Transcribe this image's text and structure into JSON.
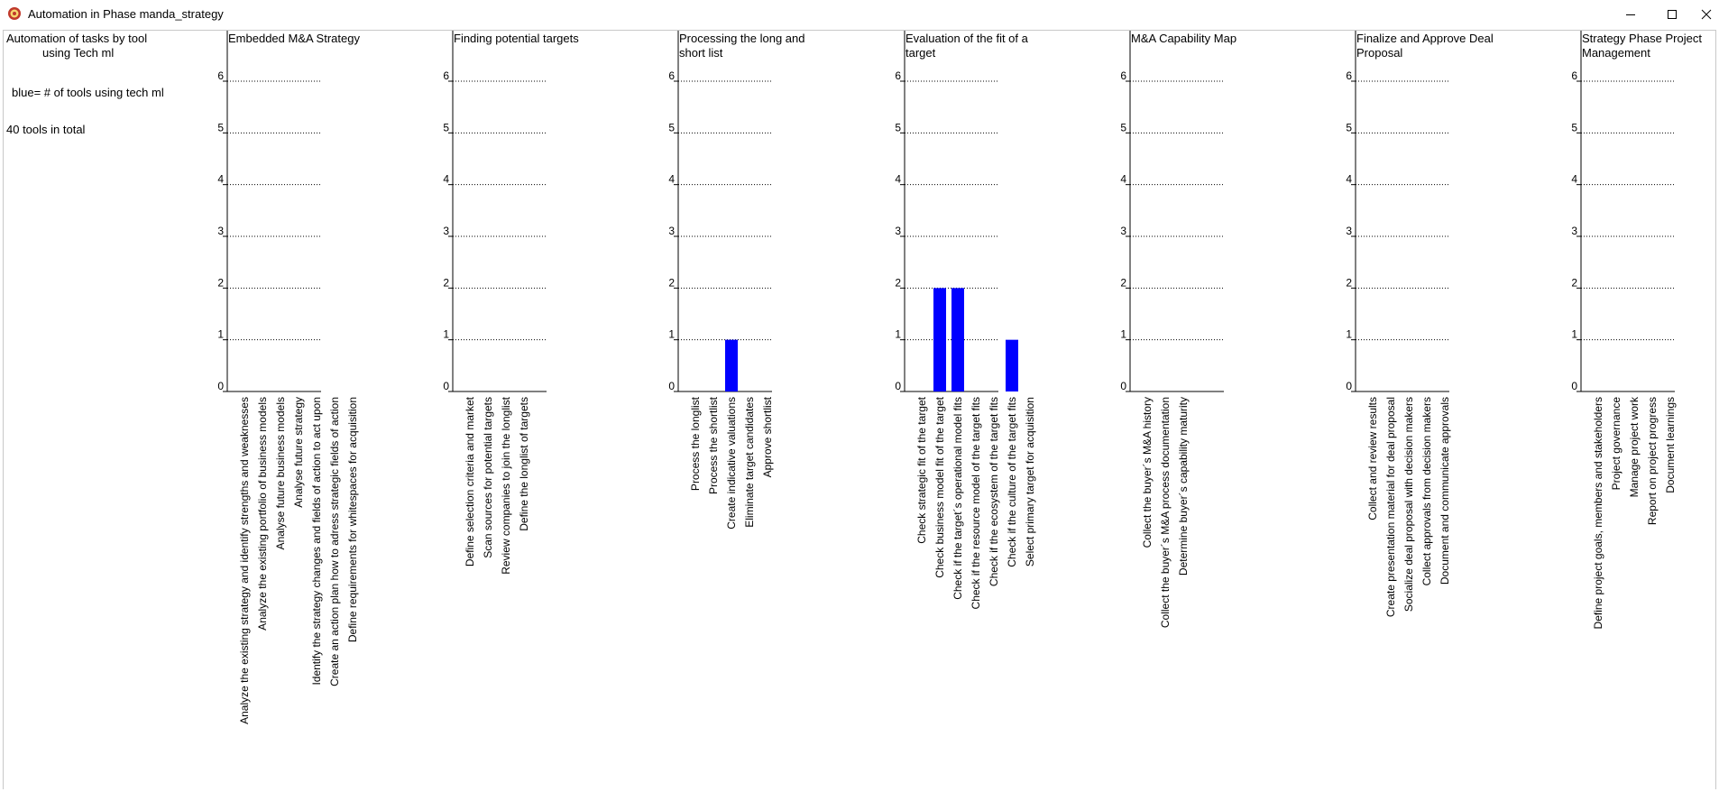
{
  "window": {
    "title": "Automation in Phase manda_strategy",
    "minimize_icon": "minimize-icon",
    "maximize_icon": "maximize-icon",
    "close_icon": "close-icon"
  },
  "info": {
    "heading_line1": "Automation of tasks by tool",
    "heading_line2": "using Tech ml",
    "legend_text": "blue= # of tools using tech ml",
    "total_text": "40 tools in total"
  },
  "colors": {
    "bar": "#0000ff",
    "axis": "#000000",
    "grid": "#000000"
  },
  "chart_data": [
    {
      "type": "bar",
      "title": "Embedded M&A Strategy",
      "ylim": [
        0,
        6
      ],
      "yticks": [
        0,
        1,
        2,
        3,
        4,
        5,
        6
      ],
      "grid": "dotted horizontal",
      "categories": [
        "Analyze the existing strategy and identify strengths and weaknesses",
        "Analyze the existing portfolio of business models",
        "Analyse future business models",
        "Analyse future strategy",
        "Identify the strategy changes and fields of action to act upon",
        "Create an action plan how to adress strategic fields of action",
        "Define requirements for whitespaces for acquisition"
      ],
      "values": [
        0,
        0,
        0,
        0,
        0,
        0,
        0
      ]
    },
    {
      "type": "bar",
      "title": "Finding potential targets",
      "ylim": [
        0,
        6
      ],
      "yticks": [
        0,
        1,
        2,
        3,
        4,
        5,
        6
      ],
      "grid": "dotted horizontal",
      "categories": [
        "Define selection criteria and market",
        "Scan sources for potential targets",
        "Review companies to join the longlist",
        "Define the longlist of targets"
      ],
      "values": [
        0,
        0,
        0,
        0
      ]
    },
    {
      "type": "bar",
      "title": "Processing the long and short list",
      "ylim": [
        0,
        6
      ],
      "yticks": [
        0,
        1,
        2,
        3,
        4,
        5,
        6
      ],
      "grid": "dotted horizontal",
      "categories": [
        "Process the longlist",
        "Process the shortlist",
        "Create indicative valuations",
        "Eliminate target candidates",
        "Approve shortlist"
      ],
      "values": [
        0,
        0,
        1,
        0,
        0
      ]
    },
    {
      "type": "bar",
      "title": "Evaluation of the fit of a target",
      "ylim": [
        0,
        6
      ],
      "yticks": [
        0,
        1,
        2,
        3,
        4,
        5,
        6
      ],
      "grid": "dotted horizontal",
      "categories": [
        "Check strategic fit of the target",
        "Check business model fit of the target",
        "Check if the target´s operational model fits",
        "Check if the resource model of the target fits",
        "Check if the ecosystem of the target fits",
        "Check if the culture of the target fits",
        "Select primary target for acquisition"
      ],
      "values": [
        0,
        2,
        2,
        0,
        0,
        1,
        0
      ]
    },
    {
      "type": "bar",
      "title": "M&A Capability Map",
      "ylim": [
        0,
        6
      ],
      "yticks": [
        0,
        1,
        2,
        3,
        4,
        5,
        6
      ],
      "grid": "dotted horizontal",
      "categories": [
        "Collect the buyer´s M&A history",
        "Collect the buyer´s M&A process documentation",
        "Determine buyer´s capability maturity"
      ],
      "values": [
        0,
        0,
        0
      ]
    },
    {
      "type": "bar",
      "title": "Finalize and Approve Deal Proposal",
      "ylim": [
        0,
        6
      ],
      "yticks": [
        0,
        1,
        2,
        3,
        4,
        5,
        6
      ],
      "grid": "dotted horizontal",
      "categories": [
        "Collect and review results",
        "Create presentation material for deal proposal",
        "Socialize deal proposal with decision makers",
        "Collect approvals from decision makers",
        "Document and communicate approvals"
      ],
      "values": [
        0,
        0,
        0,
        0,
        0
      ]
    },
    {
      "type": "bar",
      "title": "Strategy Phase Project Management",
      "ylim": [
        0,
        6
      ],
      "yticks": [
        0,
        1,
        2,
        3,
        4,
        5,
        6
      ],
      "grid": "dotted horizontal",
      "categories": [
        "Define project goals, members and stakeholders",
        "Project governance",
        "Manage project work",
        "Report on project  progress",
        "Document learnings"
      ],
      "values": [
        0,
        0,
        0,
        0,
        0
      ]
    }
  ]
}
